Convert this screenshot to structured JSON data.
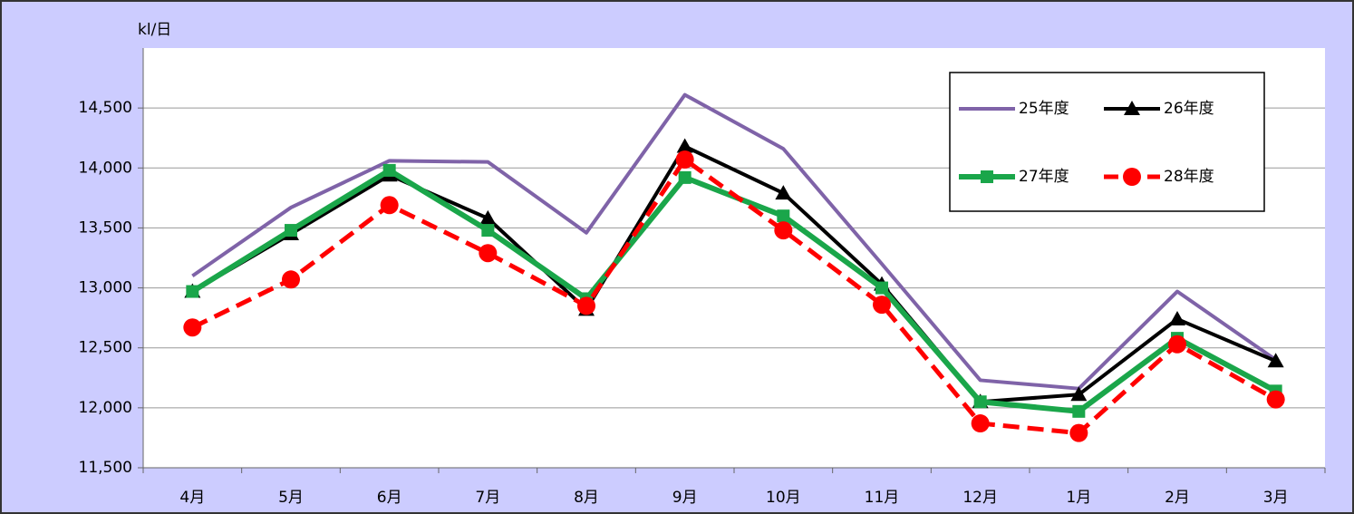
{
  "chart_data": {
    "type": "line",
    "y_axis_label": "kl/日",
    "categories": [
      "4月",
      "5月",
      "6月",
      "7月",
      "8月",
      "9月",
      "10月",
      "11月",
      "12月",
      "1月",
      "2月",
      "3月"
    ],
    "series": [
      {
        "name": "25年度",
        "color": "#7f63a8",
        "marker": "none",
        "line_style": "solid",
        "values": [
          13100,
          13670,
          14060,
          14050,
          13460,
          14610,
          14160,
          13200,
          12230,
          12160,
          12970,
          12400
        ]
      },
      {
        "name": "26年度",
        "color": "#000000",
        "marker": "triangle",
        "line_style": "solid",
        "values": [
          12970,
          13450,
          13940,
          13580,
          12820,
          14180,
          13790,
          13030,
          12050,
          12110,
          12740,
          12390
        ]
      },
      {
        "name": "27年度",
        "color": "#1aa64a",
        "marker": "square",
        "line_style": "solid",
        "values": [
          12970,
          13480,
          13980,
          13480,
          12910,
          13920,
          13600,
          13000,
          12050,
          11970,
          12580,
          12140
        ]
      },
      {
        "name": "28年度",
        "color": "#ff0000",
        "marker": "circle",
        "line_style": "dashed",
        "values": [
          12670,
          13070,
          13690,
          13290,
          12850,
          14070,
          13480,
          12860,
          11870,
          11790,
          12530,
          12070
        ]
      }
    ],
    "ylim": [
      11500,
      15000
    ],
    "yticks": [
      {
        "value": 11500,
        "label": "11,500"
      },
      {
        "value": 12000,
        "label": "12,000"
      },
      {
        "value": 12500,
        "label": "12,500"
      },
      {
        "value": 13000,
        "label": "13,000"
      },
      {
        "value": 13500,
        "label": "13,500"
      },
      {
        "value": 14000,
        "label": "14,000"
      },
      {
        "value": 14500,
        "label": "14,500"
      }
    ],
    "grid": true,
    "legend": "upper right"
  }
}
